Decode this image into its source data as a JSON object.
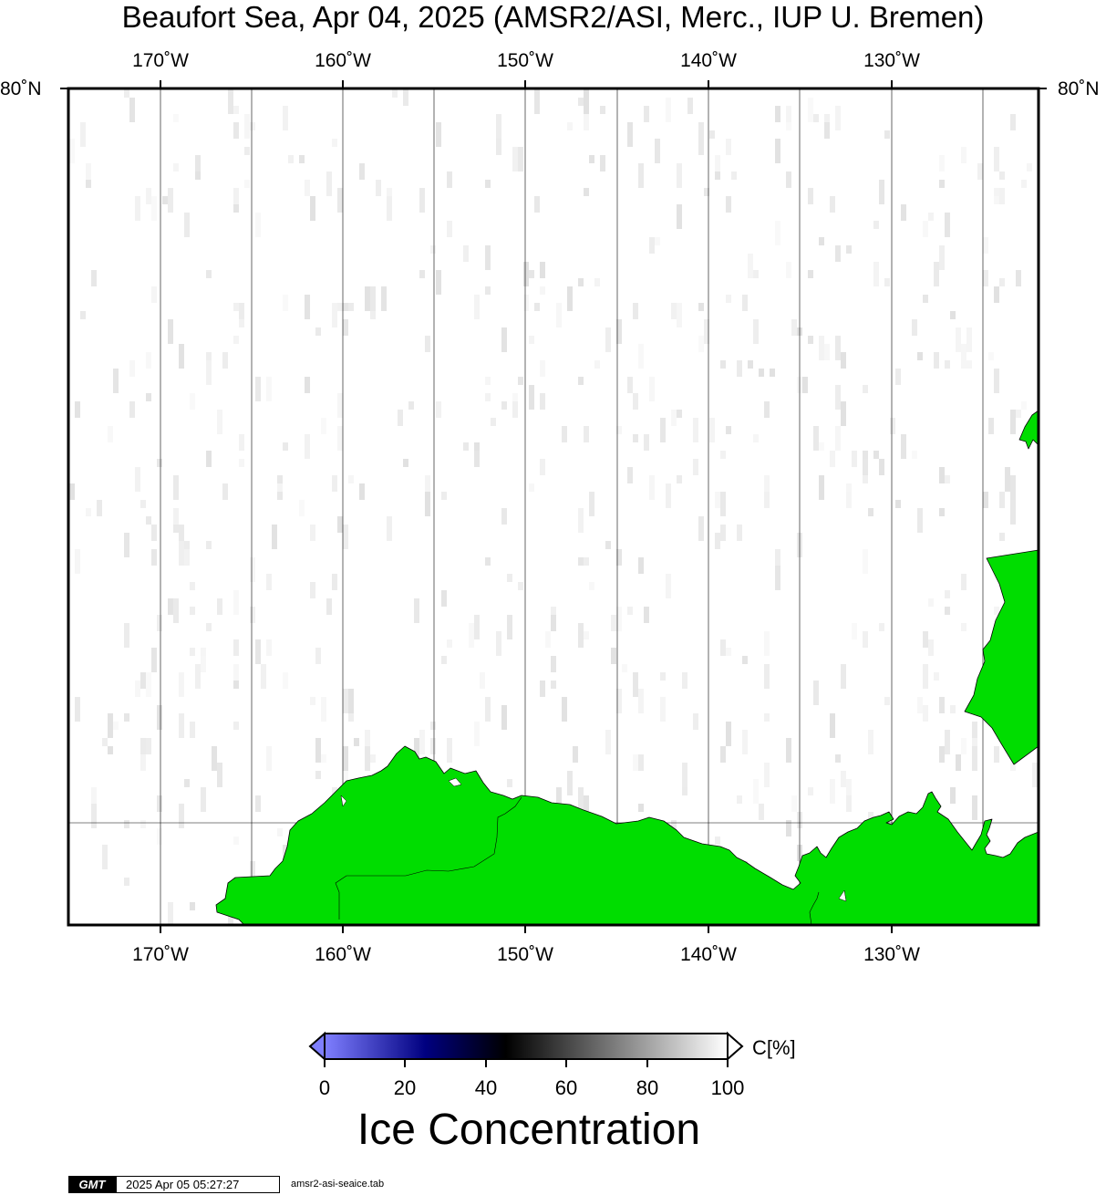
{
  "title": "Beaufort Sea, Apr 04, 2025 (AMSR2/ASI, Merc., IUP U. Bremen)",
  "lon_labels": [
    "170˚W",
    "160˚W",
    "150˚W",
    "140˚W",
    "130˚W"
  ],
  "lat_label": "80˚N",
  "colorbar": {
    "unit": "C[%]",
    "ticks": [
      "0",
      "20",
      "40",
      "60",
      "80",
      "100"
    ],
    "title": "Ice Concentration",
    "colors": [
      "#7f7fff",
      "#000080",
      "#000000",
      "#808080",
      "#ffffff"
    ]
  },
  "land_color": "#00dd00",
  "footer": {
    "logo": "GMT",
    "timestamp": "2025 Apr 05 05:27:27",
    "file": "amsr2-asi-seaice.tab"
  }
}
